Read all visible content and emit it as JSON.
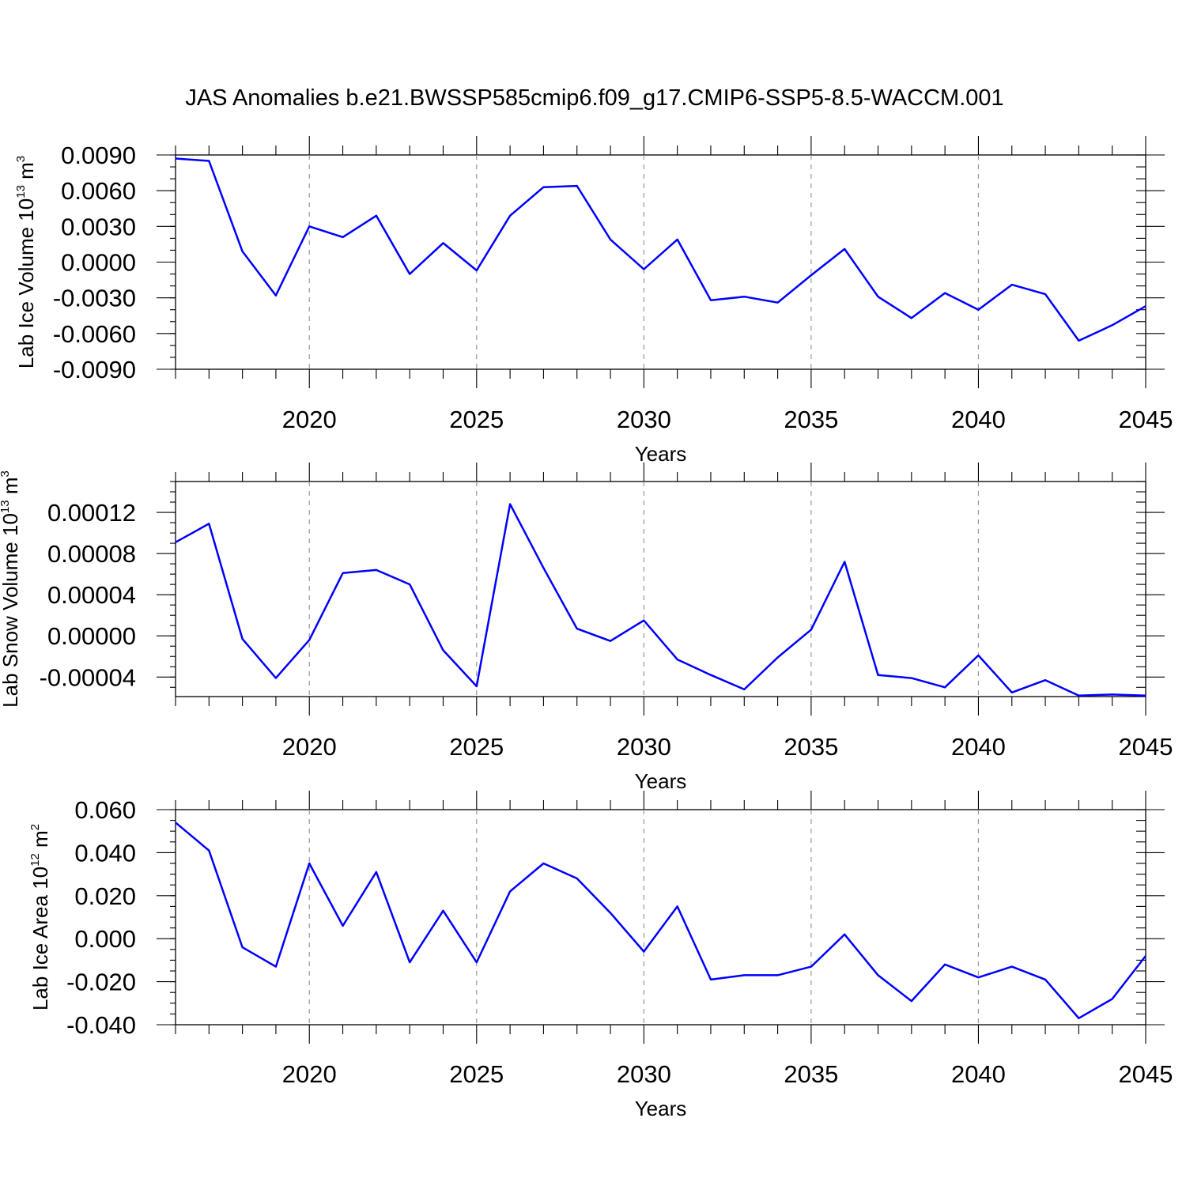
{
  "title": "JAS Anomalies b.e21.BWSSP585cmip6.f09_g17.CMIP6-SSP5-8.5-WACCM.001",
  "line_color": "#0000ff",
  "chart_data": [
    {
      "type": "line",
      "ylabel_main": "Lab Ice Volume 10",
      "ylabel_exp": "13",
      "ylabel_unit": " m",
      "ylabel_unit_exp": "3",
      "xlabel": "Years",
      "xlim": [
        2016,
        2045
      ],
      "ylim": [
        -0.009,
        0.009
      ],
      "yticks": [
        -0.009,
        -0.006,
        -0.003,
        0.0,
        0.003,
        0.006,
        0.009
      ],
      "ytick_labels": [
        "-0.0090",
        "-0.0060",
        "-0.0030",
        "0.0000",
        "0.0030",
        "0.0060",
        "0.0090"
      ],
      "yminor_step": 0.001,
      "xticks": [
        2020,
        2025,
        2030,
        2035,
        2040,
        2045
      ],
      "xtick_labels": [
        "2020",
        "2025",
        "2030",
        "2035",
        "2040",
        "2045"
      ],
      "x": [
        2016,
        2017,
        2018,
        2019,
        2020,
        2021,
        2022,
        2023,
        2024,
        2025,
        2026,
        2027,
        2028,
        2029,
        2030,
        2031,
        2032,
        2033,
        2034,
        2035,
        2036,
        2037,
        2038,
        2039,
        2040,
        2041,
        2042,
        2043,
        2044,
        2045
      ],
      "values": [
        0.0087,
        0.0085,
        0.0009,
        -0.0028,
        0.003,
        0.0021,
        0.0039,
        -0.001,
        0.0016,
        -0.0007,
        0.0039,
        0.0063,
        0.0064,
        0.0019,
        -0.0006,
        0.0019,
        -0.0032,
        -0.0029,
        -0.0034,
        -0.0011,
        0.0011,
        -0.0029,
        -0.0047,
        -0.0026,
        -0.004,
        -0.0019,
        -0.0027,
        -0.0066,
        -0.0053,
        -0.0037
      ]
    },
    {
      "type": "line",
      "ylabel_main": "Lab Snow Volume 10",
      "ylabel_exp": "13",
      "ylabel_unit": " m",
      "ylabel_unit_exp": "3",
      "xlabel": "Years",
      "xlim": [
        2016,
        2045
      ],
      "ylim": [
        -5.9e-05,
        0.00015
      ],
      "yticks": [
        -4e-05,
        0.0,
        4e-05,
        8e-05,
        0.00012
      ],
      "ytick_labels": [
        "-0.00004",
        "0.00000",
        "0.00004",
        "0.00008",
        "0.00012"
      ],
      "yminor_step": 1e-05,
      "xticks": [
        2020,
        2025,
        2030,
        2035,
        2040,
        2045
      ],
      "xtick_labels": [
        "2020",
        "2025",
        "2030",
        "2035",
        "2040",
        "2045"
      ],
      "x": [
        2016,
        2017,
        2018,
        2019,
        2020,
        2021,
        2022,
        2023,
        2024,
        2025,
        2026,
        2027,
        2028,
        2029,
        2030,
        2031,
        2032,
        2033,
        2034,
        2035,
        2036,
        2037,
        2038,
        2039,
        2040,
        2041,
        2042,
        2043,
        2044,
        2045
      ],
      "values": [
        9.1e-05,
        0.000109,
        -3e-06,
        -4.1e-05,
        -4e-06,
        6.1e-05,
        6.4e-05,
        5e-05,
        -1.4e-05,
        -4.9e-05,
        0.000128,
        6.6e-05,
        7e-06,
        -5e-06,
        1.5e-05,
        -2.3e-05,
        -3.8e-05,
        -5.2e-05,
        -2.1e-05,
        6e-06,
        7.2e-05,
        -3.8e-05,
        -4.1e-05,
        -5e-05,
        -1.9e-05,
        -5.5e-05,
        -4.3e-05,
        -5.8e-05,
        -5.7e-05,
        -5.8e-05
      ]
    },
    {
      "type": "line",
      "ylabel_main": "Lab Ice Area 10",
      "ylabel_exp": "12",
      "ylabel_unit": " m",
      "ylabel_unit_exp": "2",
      "xlabel": "Years",
      "xlim": [
        2016,
        2045
      ],
      "ylim": [
        -0.04,
        0.06
      ],
      "yticks": [
        -0.04,
        -0.02,
        0.0,
        0.02,
        0.04,
        0.06
      ],
      "ytick_labels": [
        "-0.040",
        "-0.020",
        "0.000",
        "0.020",
        "0.040",
        "0.060"
      ],
      "yminor_step": 0.005,
      "xticks": [
        2020,
        2025,
        2030,
        2035,
        2040,
        2045
      ],
      "xtick_labels": [
        "2020",
        "2025",
        "2030",
        "2035",
        "2040",
        "2045"
      ],
      "x": [
        2016,
        2017,
        2018,
        2019,
        2020,
        2021,
        2022,
        2023,
        2024,
        2025,
        2026,
        2027,
        2028,
        2029,
        2030,
        2031,
        2032,
        2033,
        2034,
        2035,
        2036,
        2037,
        2038,
        2039,
        2040,
        2041,
        2042,
        2043,
        2044,
        2045
      ],
      "values": [
        0.054,
        0.041,
        -0.004,
        -0.013,
        0.035,
        0.006,
        0.031,
        -0.011,
        0.013,
        -0.011,
        0.022,
        0.035,
        0.028,
        0.012,
        -0.006,
        0.015,
        -0.019,
        -0.017,
        -0.017,
        -0.013,
        0.002,
        -0.017,
        -0.029,
        -0.012,
        -0.018,
        -0.013,
        -0.019,
        -0.037,
        -0.028,
        -0.008
      ]
    }
  ]
}
